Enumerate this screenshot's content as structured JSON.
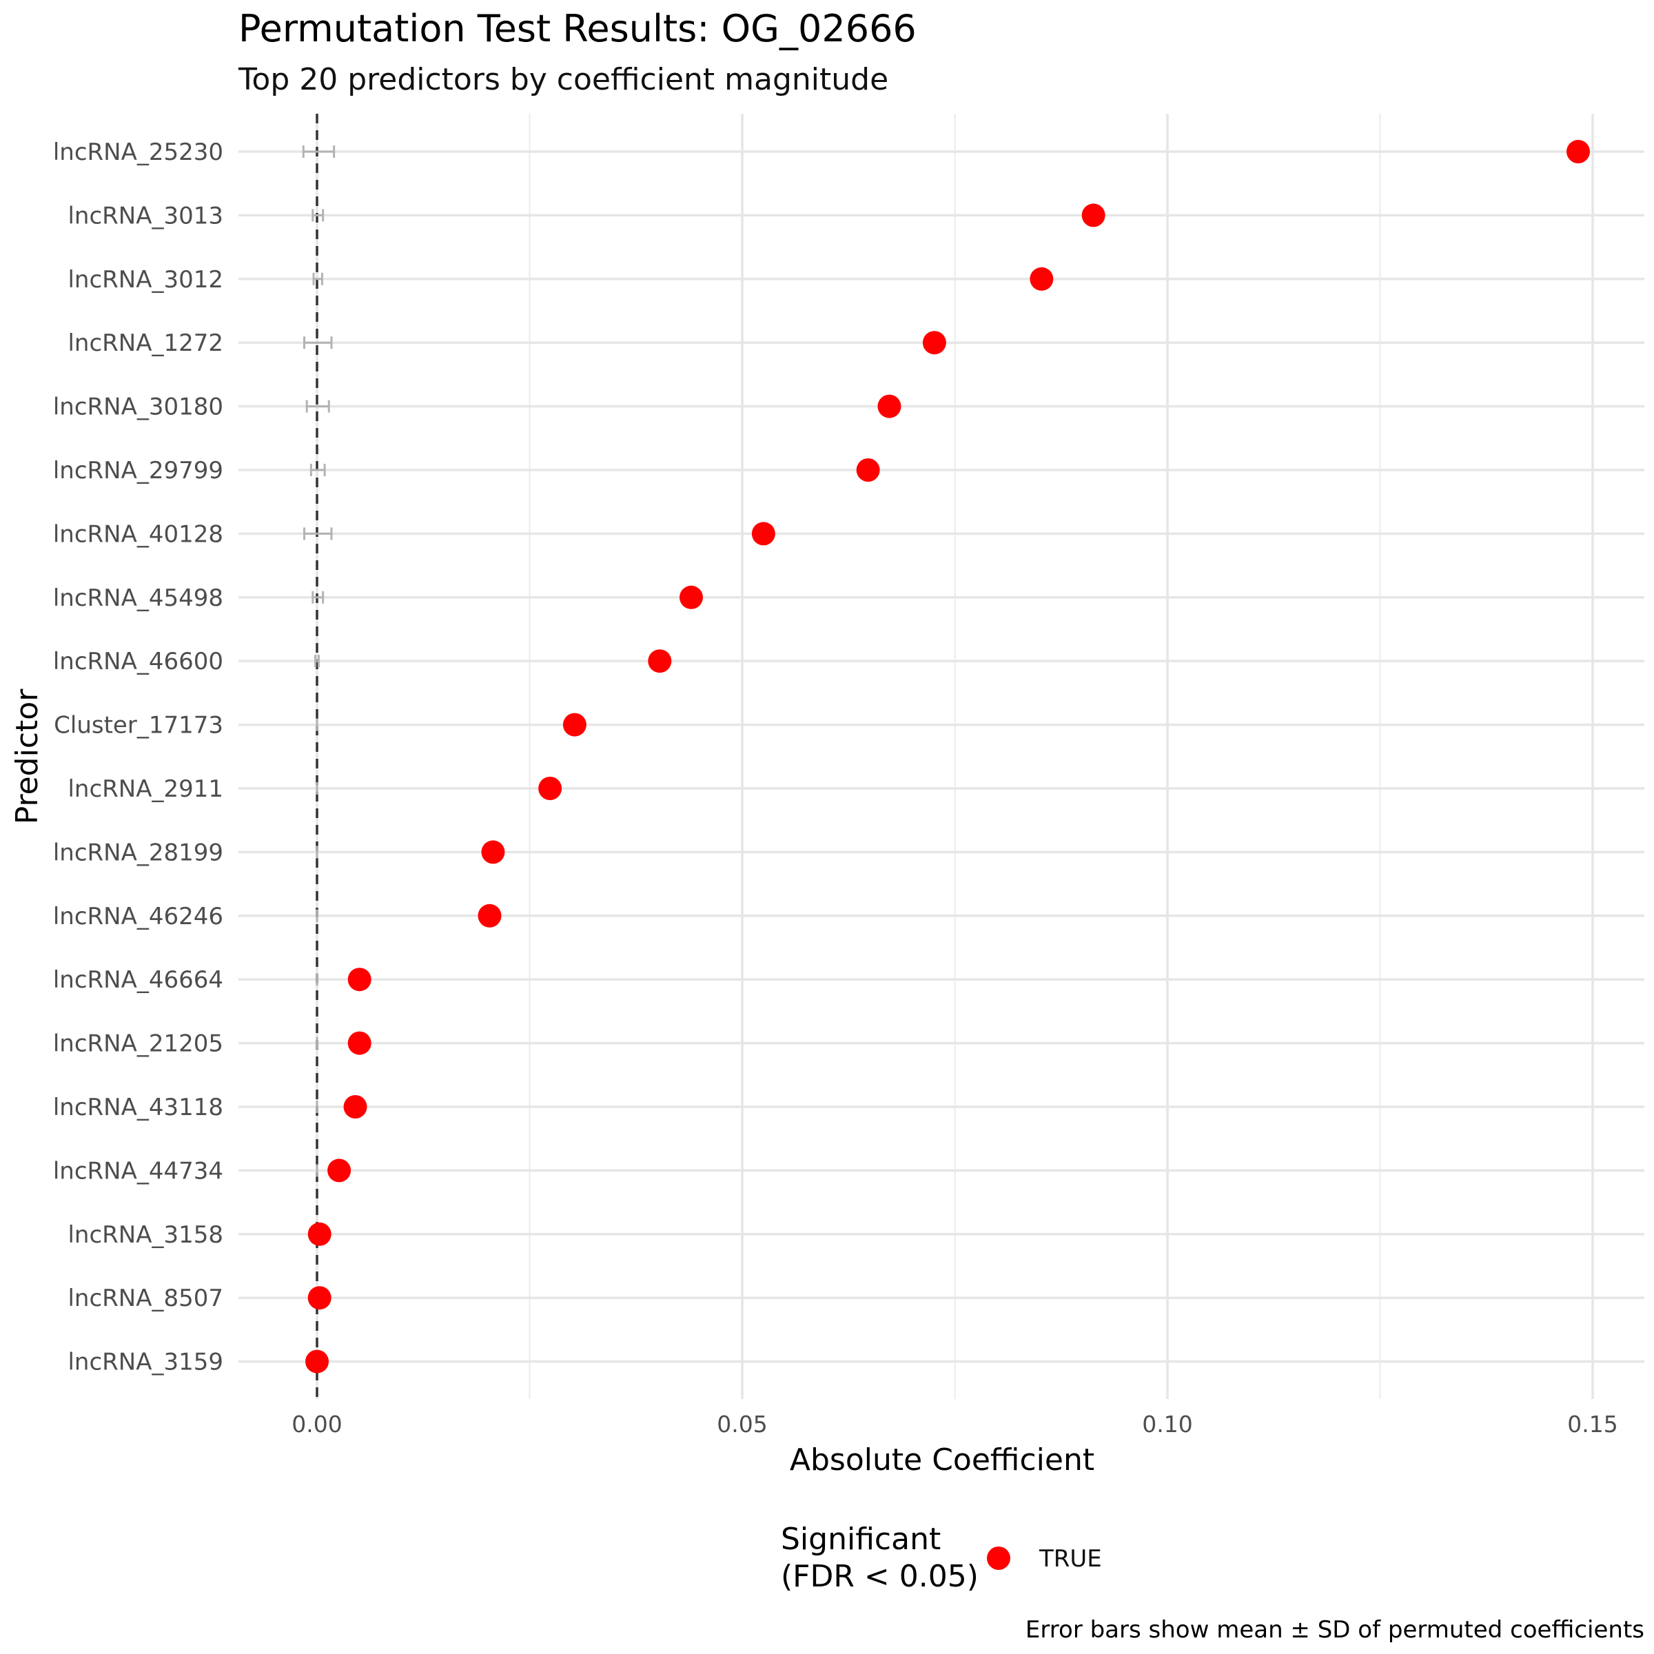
{
  "chart_data": {
    "type": "scatter",
    "title": "Permutation Test Results: OG_02666",
    "subtitle": "Top 20 predictors by coefficient magnitude",
    "xlabel": "Absolute Coefficient",
    "ylabel": "Predictor",
    "xlim": [
      -0.0093,
      0.1555
    ],
    "x_ticks": [
      0.0,
      0.05,
      0.1,
      0.15
    ],
    "x_tick_labels": [
      "0.00",
      "0.05",
      "0.10",
      "0.15"
    ],
    "grid": true,
    "reference_line_x": 0,
    "point_color": "#ff0000",
    "errorbar_color": "#b3b3b3",
    "reference_line_color": "#333333",
    "categories": [
      "lncRNA_25230",
      "lncRNA_3013",
      "lncRNA_3012",
      "lncRNA_1272",
      "lncRNA_30180",
      "lncRNA_29799",
      "lncRNA_40128",
      "lncRNA_45498",
      "lncRNA_46600",
      "Cluster_17173",
      "lncRNA_2911",
      "lncRNA_28199",
      "lncRNA_46246",
      "lncRNA_46664",
      "lncRNA_21205",
      "lncRNA_43118",
      "lncRNA_44734",
      "lncRNA_3158",
      "lncRNA_8507",
      "lncRNA_3159"
    ],
    "series": [
      {
        "name": "TRUE",
        "values": [
          0.1483,
          0.0913,
          0.0852,
          0.0726,
          0.0673,
          0.0648,
          0.0525,
          0.044,
          0.0403,
          0.0303,
          0.0274,
          0.0207,
          0.0203,
          0.005,
          0.005,
          0.0045,
          0.0026,
          0.0003,
          0.0003,
          0.0
        ]
      }
    ],
    "permuted_mean": [
      0.0002,
      0.0001,
      0.0001,
      0.0001,
      0.0001,
      0.0001,
      0.0001,
      0.0001,
      0.0,
      0.0,
      0.0,
      0.0,
      0.0,
      0.0,
      0.0,
      0.0,
      0.0,
      0.0,
      0.0,
      0.0
    ],
    "permuted_sd": [
      0.0018,
      0.0006,
      0.0005,
      0.0016,
      0.0013,
      0.0008,
      0.0016,
      0.0006,
      0.0002,
      0.0,
      0.0,
      0.0,
      0.0,
      0.0,
      0.0,
      0.0,
      0.0,
      0.0,
      0.0,
      0.0
    ],
    "legend": {
      "title_line1": "Significant",
      "title_line2": "(FDR < 0.05)",
      "label": "TRUE",
      "position": "bottom"
    },
    "caption": "Error bars show mean ± SD of permuted coefficients"
  }
}
